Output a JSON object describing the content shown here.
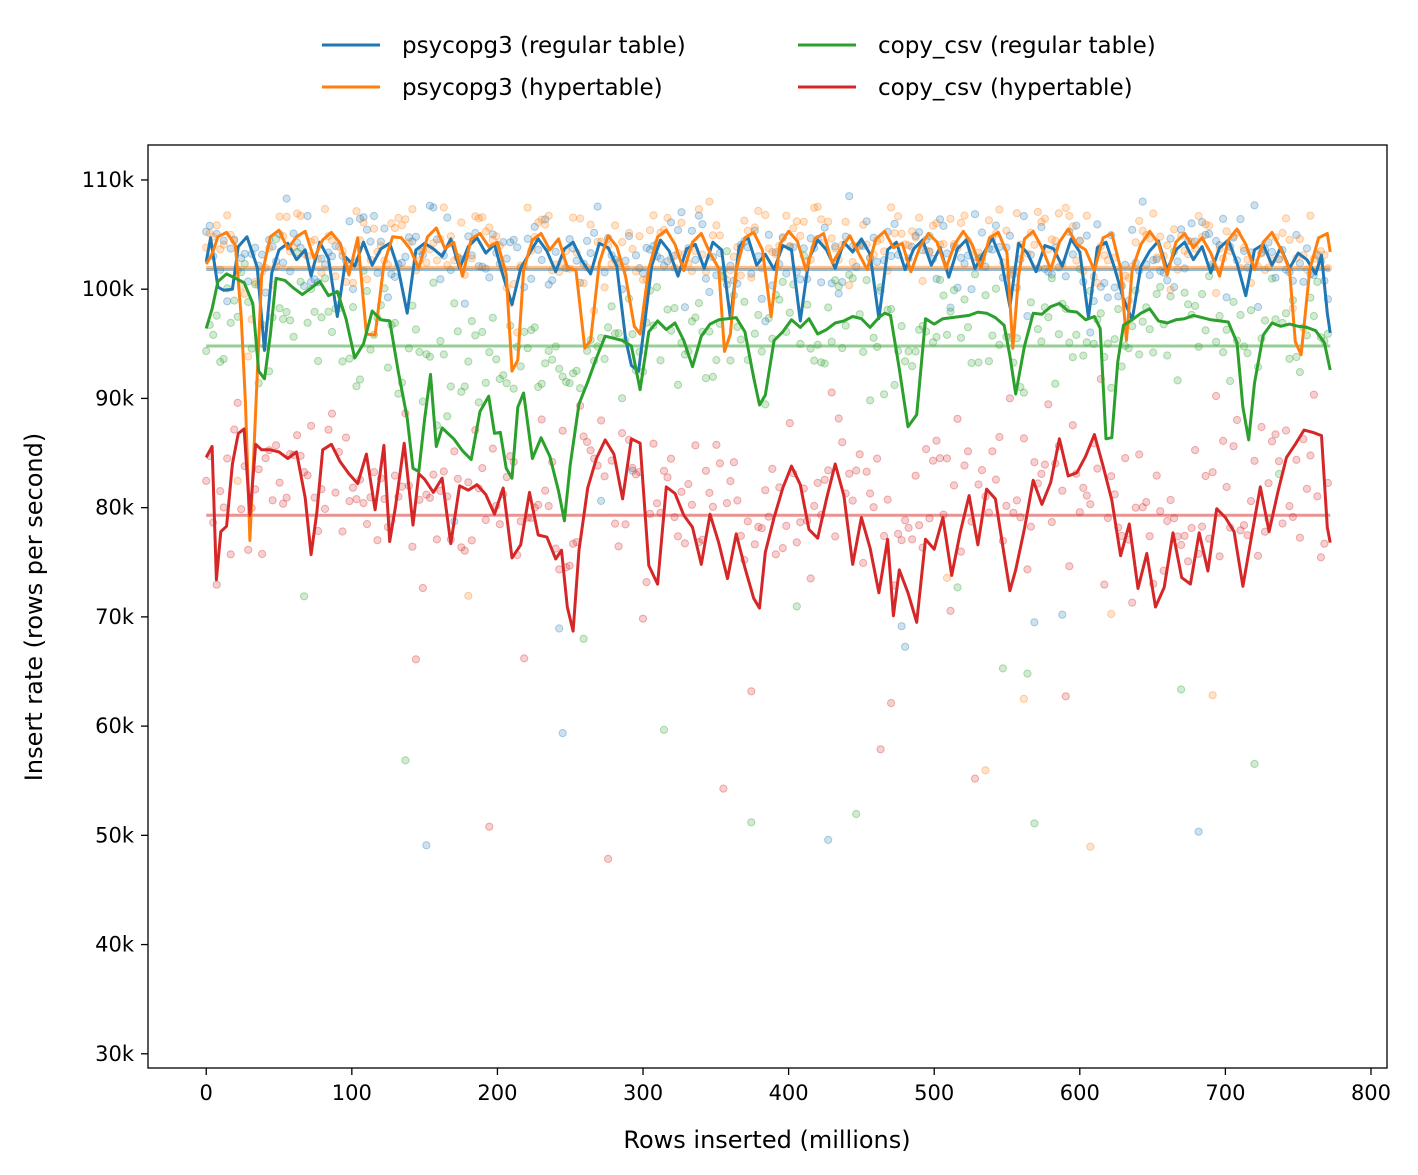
{
  "chart_data": {
    "type": "line",
    "title": "",
    "xlabel": "Rows inserted (millions)",
    "ylabel": "Insert rate (rows per second)",
    "xlim": [
      -40,
      811
    ],
    "ylim": [
      28700,
      113200
    ],
    "xticks": [
      0,
      100,
      200,
      300,
      400,
      500,
      600,
      700,
      800
    ],
    "xtick_labels": [
      "0",
      "100",
      "200",
      "300",
      "400",
      "500",
      "600",
      "700",
      "800"
    ],
    "yticks": [
      30000,
      40000,
      50000,
      60000,
      70000,
      80000,
      90000,
      100000,
      110000
    ],
    "ytick_labels": [
      "30k",
      "40k",
      "50k",
      "60k",
      "70k",
      "80k",
      "90k",
      "100k",
      "110k"
    ],
    "grid": false,
    "legend_position": "top-center",
    "series": [
      {
        "name": "psycopg3 (regular table)",
        "color": "#1f77b4",
        "mean": 101800,
        "scatter_center": 103500,
        "scatter_spread": 2000,
        "x": [
          0,
          3,
          8,
          12,
          18,
          22,
          28,
          35,
          40,
          45,
          50,
          56,
          62,
          68,
          72,
          78,
          84,
          90,
          96,
          102,
          108,
          114,
          120,
          126,
          132,
          138,
          144,
          150,
          156,
          162,
          168,
          174,
          180,
          186,
          192,
          198,
          204,
          210,
          216,
          222,
          228,
          234,
          240,
          246,
          252,
          258,
          264,
          270,
          276,
          282,
          288,
          292,
          297,
          302,
          306,
          312,
          318,
          324,
          330,
          336,
          342,
          348,
          354,
          360,
          366,
          372,
          378,
          384,
          390,
          396,
          402,
          408,
          414,
          420,
          426,
          432,
          438,
          444,
          450,
          456,
          462,
          468,
          474,
          480,
          486,
          492,
          498,
          504,
          510,
          516,
          522,
          528,
          534,
          540,
          546,
          552,
          558,
          564,
          570,
          576,
          582,
          588,
          594,
          600,
          606,
          612,
          618,
          624,
          630,
          636,
          642,
          648,
          654,
          660,
          666,
          672,
          678,
          684,
          690,
          696,
          702,
          708,
          714,
          720,
          726,
          732,
          738,
          744,
          750,
          756,
          762,
          766,
          770,
          772
        ],
        "y": [
          102500,
          104700,
          100200,
          99900,
          100000,
          103900,
          104800,
          102000,
          94400,
          101500,
          103600,
          104200,
          102700,
          103600,
          101200,
          104300,
          102800,
          97500,
          102900,
          102100,
          104300,
          102200,
          103700,
          104200,
          101800,
          97800,
          103600,
          104200,
          103700,
          103000,
          104600,
          101900,
          103900,
          104700,
          103300,
          104100,
          101200,
          98600,
          101900,
          103300,
          104600,
          103500,
          101600,
          103700,
          104300,
          102600,
          101400,
          104200,
          103800,
          102100,
          95500,
          93000,
          92500,
          97800,
          102200,
          104500,
          103500,
          101200,
          103700,
          104100,
          101900,
          104300,
          103600,
          97300,
          103900,
          104800,
          102200,
          103200,
          101800,
          104000,
          103600,
          97100,
          102800,
          104500,
          103600,
          101900,
          104300,
          103400,
          104600,
          103200,
          97300,
          103600,
          104300,
          101800,
          103700,
          104500,
          102200,
          103800,
          101100,
          103700,
          104500,
          101900,
          103300,
          104700,
          102700,
          98400,
          104200,
          103300,
          101600,
          104000,
          103700,
          102100,
          104600,
          103400,
          97400,
          103800,
          104300,
          101900,
          99100,
          97200,
          102100,
          103500,
          104400,
          101800,
          103600,
          104300,
          102700,
          103900,
          101500,
          103800,
          104500,
          102400,
          99400,
          103600,
          104100,
          102200,
          103800,
          101900,
          103300,
          102700,
          101400,
          103100,
          97800,
          96000
        ]
      },
      {
        "name": "psycopg3 (hypertable)",
        "color": "#ff7f0e",
        "mean": 102000,
        "scatter_center": 104200,
        "scatter_spread": 2000,
        "x": [
          0,
          4,
          8,
          14,
          20,
          24,
          27,
          30,
          33,
          38,
          44,
          50,
          56,
          62,
          68,
          74,
          80,
          86,
          92,
          98,
          104,
          110,
          116,
          122,
          128,
          134,
          140,
          146,
          152,
          158,
          164,
          170,
          176,
          182,
          188,
          194,
          200,
          206,
          210,
          214,
          218,
          224,
          230,
          236,
          242,
          248,
          254,
          260,
          264,
          270,
          276,
          282,
          288,
          294,
          298,
          304,
          310,
          316,
          322,
          328,
          334,
          340,
          346,
          352,
          356,
          360,
          364,
          370,
          376,
          382,
          388,
          394,
          400,
          406,
          412,
          418,
          424,
          430,
          436,
          442,
          448,
          454,
          460,
          466,
          472,
          478,
          484,
          490,
          496,
          502,
          508,
          514,
          520,
          526,
          532,
          538,
          544,
          550,
          554,
          558,
          562,
          568,
          574,
          580,
          586,
          592,
          598,
          604,
          610,
          616,
          622,
          628,
          632,
          636,
          642,
          648,
          654,
          660,
          666,
          672,
          678,
          684,
          690,
          696,
          702,
          708,
          714,
          720,
          726,
          732,
          738,
          744,
          748,
          752,
          758,
          764,
          770,
          772
        ],
        "y": [
          102300,
          103200,
          104800,
          105200,
          104000,
          97500,
          89500,
          77000,
          86000,
          101200,
          104800,
          105400,
          103700,
          104800,
          105300,
          102800,
          104500,
          105200,
          104200,
          101300,
          104700,
          95900,
          95800,
          102300,
          104800,
          104700,
          103700,
          101900,
          104800,
          105600,
          103700,
          104300,
          101200,
          104600,
          105100,
          103900,
          104300,
          101400,
          92500,
          93500,
          101800,
          104500,
          105100,
          103600,
          104600,
          102000,
          101700,
          94600,
          95300,
          102400,
          104900,
          103900,
          101200,
          96600,
          95900,
          101900,
          104800,
          105400,
          104100,
          101700,
          104300,
          105100,
          103300,
          101900,
          94300,
          95900,
          101800,
          104700,
          105200,
          103600,
          97500,
          104100,
          105300,
          104400,
          101700,
          104600,
          105100,
          102400,
          103700,
          104900,
          103300,
          101800,
          104600,
          105300,
          103800,
          104200,
          101600,
          103800,
          105100,
          104300,
          101900,
          104100,
          105300,
          104100,
          101900,
          104700,
          105200,
          103300,
          94600,
          101200,
          104600,
          105300,
          103800,
          101800,
          104300,
          105500,
          104100,
          103600,
          101700,
          104700,
          105100,
          101900,
          95300,
          101800,
          104100,
          105300,
          104200,
          101300,
          104300,
          105100,
          103800,
          104700,
          103300,
          101200,
          104500,
          105500,
          104100,
          101800,
          104300,
          105200,
          103700,
          101800,
          95200,
          94000,
          101800,
          104700,
          105100,
          103400
        ]
      },
      {
        "name": "copy_csv (regular table)",
        "color": "#2ca02c",
        "mean": 94800,
        "scatter_center": 97000,
        "scatter_spread": 2800,
        "x": [
          0,
          4,
          8,
          14,
          20,
          26,
          32,
          36,
          40,
          44,
          48,
          54,
          60,
          66,
          72,
          78,
          84,
          90,
          96,
          102,
          108,
          114,
          120,
          126,
          132,
          138,
          142,
          146,
          150,
          154,
          158,
          162,
          166,
          170,
          176,
          182,
          188,
          194,
          198,
          202,
          206,
          210,
          214,
          218,
          224,
          230,
          236,
          242,
          246,
          250,
          256,
          262,
          268,
          274,
          280,
          286,
          292,
          298,
          304,
          310,
          316,
          322,
          328,
          334,
          340,
          346,
          352,
          358,
          364,
          370,
          376,
          380,
          384,
          390,
          396,
          402,
          408,
          414,
          420,
          426,
          432,
          438,
          444,
          450,
          456,
          462,
          466,
          470,
          476,
          482,
          488,
          494,
          500,
          506,
          512,
          518,
          524,
          530,
          536,
          542,
          548,
          552,
          556,
          562,
          568,
          574,
          580,
          586,
          592,
          598,
          604,
          610,
          614,
          618,
          622,
          626,
          630,
          636,
          642,
          648,
          654,
          660,
          666,
          672,
          678,
          684,
          690,
          696,
          702,
          708,
          712,
          716,
          720,
          726,
          732,
          738,
          744,
          750,
          756,
          762,
          768,
          772
        ],
        "y": [
          96400,
          98200,
          100700,
          101400,
          101000,
          100600,
          98700,
          92500,
          91800,
          95800,
          101000,
          100800,
          100100,
          99500,
          100100,
          100700,
          99400,
          99800,
          97300,
          93700,
          95000,
          98000,
          97200,
          97100,
          92400,
          88200,
          83600,
          83300,
          88100,
          92200,
          85600,
          87300,
          86800,
          86300,
          85200,
          84400,
          88800,
          90200,
          86800,
          86900,
          83600,
          82700,
          89200,
          90500,
          84500,
          86400,
          84700,
          81500,
          78800,
          83900,
          89500,
          91500,
          93700,
          95700,
          95500,
          95300,
          94800,
          90800,
          96100,
          97100,
          96300,
          96900,
          95300,
          92900,
          95700,
          96800,
          97200,
          97300,
          97400,
          96100,
          91900,
          89400,
          90300,
          95300,
          96100,
          97200,
          96500,
          97300,
          95900,
          96300,
          96900,
          97100,
          97500,
          97300,
          96500,
          97400,
          97800,
          97600,
          92700,
          87400,
          88500,
          97300,
          96800,
          97300,
          97400,
          97500,
          97600,
          97900,
          97800,
          97400,
          96700,
          93900,
          90400,
          94800,
          97800,
          97700,
          98400,
          98700,
          98000,
          97900,
          97200,
          97500,
          96400,
          86300,
          86400,
          93300,
          96700,
          97200,
          97800,
          98200,
          97100,
          96900,
          97200,
          97300,
          97600,
          97400,
          97200,
          97100,
          97000,
          95100,
          89200,
          86200,
          91400,
          95800,
          96900,
          96600,
          96800,
          96600,
          96500,
          96200,
          95100,
          92600
        ]
      },
      {
        "name": "copy_csv (hypertable)",
        "color": "#d62728",
        "mean": 79300,
        "scatter_center": 82500,
        "scatter_spread": 3800,
        "x": [
          0,
          4,
          7,
          10,
          14,
          18,
          22,
          26,
          30,
          34,
          38,
          44,
          50,
          56,
          62,
          68,
          72,
          76,
          80,
          86,
          92,
          98,
          104,
          110,
          116,
          122,
          126,
          130,
          136,
          142,
          146,
          150,
          156,
          162,
          168,
          174,
          180,
          186,
          192,
          198,
          204,
          210,
          216,
          222,
          228,
          234,
          240,
          244,
          248,
          252,
          256,
          262,
          268,
          274,
          280,
          286,
          292,
          298,
          304,
          310,
          316,
          322,
          328,
          334,
          340,
          346,
          352,
          358,
          364,
          370,
          376,
          380,
          384,
          390,
          396,
          402,
          408,
          414,
          420,
          426,
          432,
          438,
          444,
          450,
          456,
          462,
          468,
          472,
          476,
          482,
          488,
          494,
          500,
          506,
          512,
          518,
          524,
          530,
          536,
          542,
          548,
          552,
          556,
          562,
          568,
          574,
          580,
          586,
          592,
          598,
          604,
          610,
          616,
          622,
          628,
          634,
          640,
          646,
          652,
          658,
          664,
          670,
          676,
          682,
          688,
          694,
          700,
          706,
          712,
          718,
          724,
          730,
          736,
          742,
          748,
          754,
          760,
          766,
          770,
          772
        ],
        "y": [
          84600,
          85600,
          73400,
          77800,
          78300,
          84000,
          86800,
          87200,
          79300,
          85800,
          85300,
          85300,
          85100,
          84500,
          85100,
          80900,
          75700,
          79600,
          85300,
          85800,
          84200,
          83100,
          82200,
          84900,
          79800,
          85700,
          76900,
          80100,
          85900,
          78400,
          83100,
          82600,
          81400,
          82700,
          76700,
          82000,
          81600,
          82100,
          81200,
          79400,
          81800,
          75400,
          76600,
          81400,
          77500,
          77300,
          75300,
          76100,
          70900,
          68700,
          76100,
          81800,
          84500,
          86200,
          84900,
          80800,
          86300,
          85900,
          74700,
          73000,
          81900,
          81300,
          79300,
          78200,
          74800,
          79400,
          76800,
          73500,
          77600,
          74500,
          71700,
          70800,
          75900,
          79100,
          81800,
          83800,
          82100,
          78000,
          77200,
          80800,
          84000,
          81100,
          74800,
          79100,
          76300,
          72200,
          77100,
          70100,
          74300,
          72200,
          69500,
          77100,
          76200,
          79100,
          73800,
          77800,
          81100,
          76600,
          81700,
          80800,
          75700,
          72400,
          74300,
          78100,
          82500,
          80300,
          82300,
          86300,
          82900,
          83200,
          84700,
          86700,
          83800,
          80700,
          75600,
          78500,
          72600,
          75800,
          70900,
          72700,
          77700,
          73600,
          73000,
          77700,
          74200,
          79900,
          79100,
          77800,
          72800,
          77400,
          81900,
          77800,
          81400,
          84600,
          85800,
          87100,
          86900,
          86600,
          78200,
          76800
        ]
      }
    ]
  }
}
